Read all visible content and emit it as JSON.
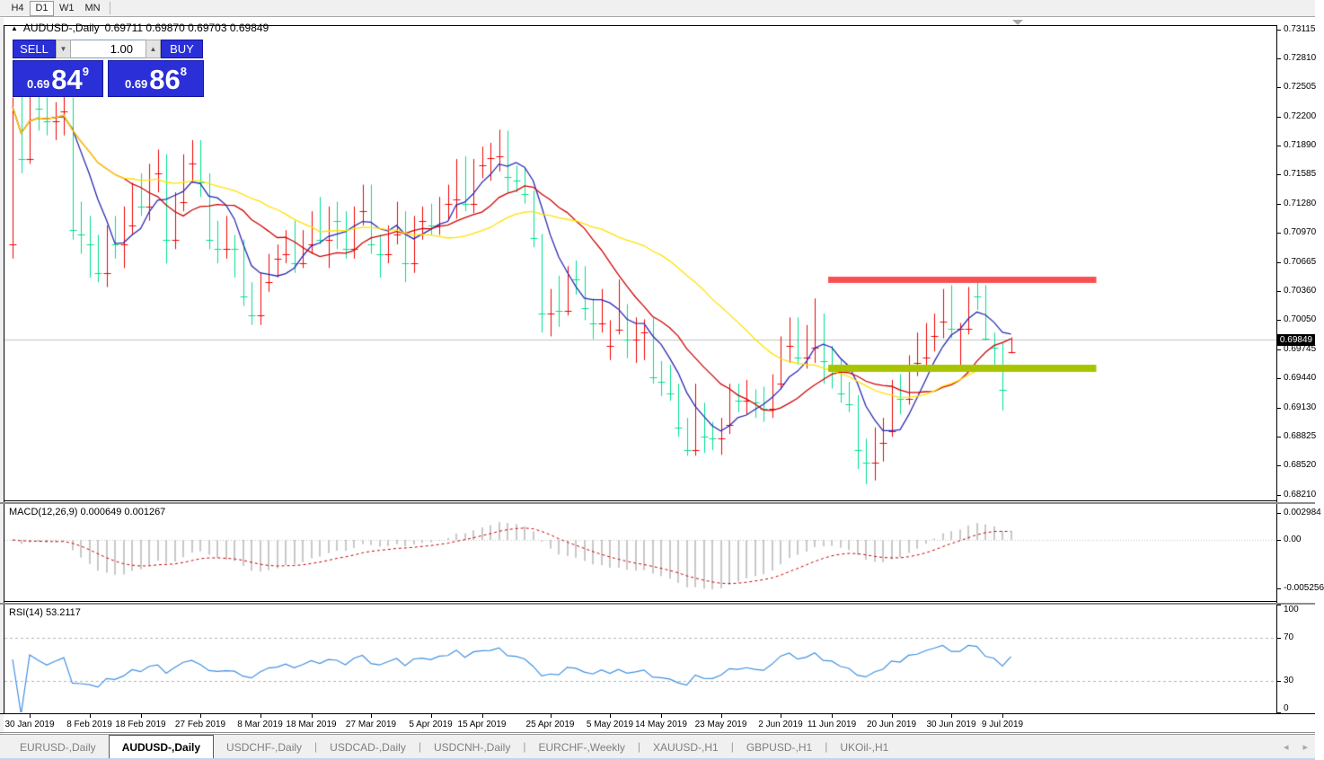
{
  "toolbar": {
    "timeframes": [
      {
        "label": "H4",
        "active": false
      },
      {
        "label": "D1",
        "active": true
      },
      {
        "label": "W1",
        "active": false
      },
      {
        "label": "MN",
        "active": false
      }
    ]
  },
  "chart": {
    "title_symbol": "AUDUSD-,Daily",
    "title_ohlc": "0.69711 0.69870 0.69703 0.69849",
    "trade_panel": {
      "sell_label": "SELL",
      "buy_label": "BUY",
      "volume": "1.00",
      "sell_price": {
        "small": "0.69",
        "big": "84",
        "sup": "9"
      },
      "buy_price": {
        "small": "0.69",
        "big": "86",
        "sup": "8"
      }
    },
    "current_price": "0.69849",
    "price_axis_labels": [
      "0.73115",
      "0.72810",
      "0.72505",
      "0.72200",
      "0.71890",
      "0.71585",
      "0.71280",
      "0.70970",
      "0.70665",
      "0.70360",
      "0.70050",
      "0.69745",
      "0.69440",
      "0.69130",
      "0.68825",
      "0.68520",
      "0.68210"
    ],
    "date_labels": [
      {
        "text": "30 Jan 2019",
        "index": 2
      },
      {
        "text": "8 Feb 2019",
        "index": 9
      },
      {
        "text": "18 Feb 2019",
        "index": 15
      },
      {
        "text": "27 Feb 2019",
        "index": 22
      },
      {
        "text": "8 Mar 2019",
        "index": 29
      },
      {
        "text": "18 Mar 2019",
        "index": 35
      },
      {
        "text": "27 Mar 2019",
        "index": 42
      },
      {
        "text": "5 Apr 2019",
        "index": 49
      },
      {
        "text": "15 Apr 2019",
        "index": 55
      },
      {
        "text": "25 Apr 2019",
        "index": 63
      },
      {
        "text": "5 May 2019",
        "index": 70
      },
      {
        "text": "14 May 2019",
        "index": 76
      },
      {
        "text": "23 May 2019",
        "index": 83
      },
      {
        "text": "2 Jun 2019",
        "index": 90
      },
      {
        "text": "11 Jun 2019",
        "index": 96
      },
      {
        "text": "20 Jun 2019",
        "index": 103
      },
      {
        "text": "30 Jun 2019",
        "index": 110
      },
      {
        "text": "9 Jul 2019",
        "index": 116
      }
    ]
  },
  "chart_data": {
    "type": "candlestick",
    "symbol": "AUDUSD",
    "timeframe": "Daily",
    "price_range": {
      "top": 0.73115,
      "bottom": 0.6821
    },
    "colors": {
      "bull": "#F00000",
      "bear": "#00DF8C",
      "ma_fast": "#2828B4",
      "ma_mid": "#D00000",
      "ma_slow": "#FFE100",
      "resistance": "#F85050",
      "support": "#A8C400",
      "macd_hist": "#C8C8C8",
      "macd_signal": "#C80000",
      "rsi_line": "#4090E0",
      "level_dash": "#B4B4B4",
      "price_line": "#C0C0C0",
      "panel_blue": "#2A2FD8"
    },
    "moving_averages": [
      {
        "period": 6,
        "color_key": "ma_fast"
      },
      {
        "period": 14,
        "color_key": "ma_mid"
      },
      {
        "period": 30,
        "color_key": "ma_slow"
      }
    ],
    "objects": [
      {
        "name": "resistance-line",
        "price": 0.7048,
        "from_index": 96,
        "to_index": 127,
        "color_key": "resistance",
        "thickness": 7
      },
      {
        "name": "support-line",
        "price": 0.69543,
        "from_index": 96,
        "to_index": 127,
        "color_key": "support",
        "thickness": 8
      }
    ],
    "current_price": 0.69849,
    "candles": [
      [
        0.7085,
        0.724,
        0.707,
        0.723
      ],
      [
        0.723,
        0.7245,
        0.716,
        0.7175
      ],
      [
        0.7175,
        0.7245,
        0.717,
        0.724
      ],
      [
        0.724,
        0.725,
        0.7205,
        0.7228
      ],
      [
        0.7228,
        0.724,
        0.72,
        0.7215
      ],
      [
        0.7215,
        0.7235,
        0.7195,
        0.7225
      ],
      [
        0.7225,
        0.7245,
        0.72,
        0.7235
      ],
      [
        0.7235,
        0.724,
        0.709,
        0.71
      ],
      [
        0.71,
        0.713,
        0.7075,
        0.7095
      ],
      [
        0.7095,
        0.7115,
        0.705,
        0.7085
      ],
      [
        0.7085,
        0.7095,
        0.7045,
        0.7055
      ],
      [
        0.7055,
        0.7105,
        0.704,
        0.7095
      ],
      [
        0.7095,
        0.7115,
        0.707,
        0.7085
      ],
      [
        0.7085,
        0.7125,
        0.706,
        0.7105
      ],
      [
        0.7105,
        0.715,
        0.7095,
        0.7145
      ],
      [
        0.7145,
        0.716,
        0.7115,
        0.7125
      ],
      [
        0.7125,
        0.717,
        0.711,
        0.716
      ],
      [
        0.716,
        0.7185,
        0.714,
        0.717
      ],
      [
        0.717,
        0.718,
        0.7065,
        0.709
      ],
      [
        0.709,
        0.714,
        0.708,
        0.713
      ],
      [
        0.713,
        0.718,
        0.712,
        0.717
      ],
      [
        0.717,
        0.7195,
        0.715,
        0.7185
      ],
      [
        0.7185,
        0.7195,
        0.7135,
        0.715
      ],
      [
        0.715,
        0.716,
        0.708,
        0.709
      ],
      [
        0.709,
        0.711,
        0.7065,
        0.708
      ],
      [
        0.708,
        0.7115,
        0.707,
        0.7085
      ],
      [
        0.7085,
        0.7095,
        0.705,
        0.708
      ],
      [
        0.708,
        0.709,
        0.702,
        0.703
      ],
      [
        0.703,
        0.7045,
        0.7,
        0.701
      ],
      [
        0.701,
        0.7055,
        0.7,
        0.7045
      ],
      [
        0.7045,
        0.7075,
        0.7035,
        0.707
      ],
      [
        0.707,
        0.7085,
        0.705,
        0.7075
      ],
      [
        0.7075,
        0.71,
        0.7065,
        0.7095
      ],
      [
        0.7095,
        0.711,
        0.7055,
        0.7065
      ],
      [
        0.7065,
        0.71,
        0.706,
        0.7085
      ],
      [
        0.7085,
        0.712,
        0.7075,
        0.711
      ],
      [
        0.711,
        0.7135,
        0.7085,
        0.709
      ],
      [
        0.709,
        0.7125,
        0.706,
        0.7115
      ],
      [
        0.7115,
        0.713,
        0.708,
        0.711
      ],
      [
        0.711,
        0.712,
        0.707,
        0.708
      ],
      [
        0.708,
        0.7125,
        0.707,
        0.712
      ],
      [
        0.712,
        0.7148,
        0.7105,
        0.714
      ],
      [
        0.714,
        0.7148,
        0.7075,
        0.7085
      ],
      [
        0.7085,
        0.7095,
        0.705,
        0.7075
      ],
      [
        0.7075,
        0.7105,
        0.7065,
        0.7095
      ],
      [
        0.7095,
        0.713,
        0.7085,
        0.7115
      ],
      [
        0.7115,
        0.712,
        0.7045,
        0.7065
      ],
      [
        0.7065,
        0.7115,
        0.7055,
        0.711
      ],
      [
        0.711,
        0.7125,
        0.709,
        0.7115
      ],
      [
        0.7115,
        0.7128,
        0.7095,
        0.7105
      ],
      [
        0.7105,
        0.7135,
        0.7095,
        0.7128
      ],
      [
        0.7128,
        0.7148,
        0.711,
        0.7132
      ],
      [
        0.7132,
        0.7175,
        0.7112,
        0.717
      ],
      [
        0.717,
        0.7178,
        0.712,
        0.7128
      ],
      [
        0.7128,
        0.7175,
        0.7118,
        0.7168
      ],
      [
        0.7168,
        0.7188,
        0.7155,
        0.7176
      ],
      [
        0.7176,
        0.7192,
        0.7152,
        0.7178
      ],
      [
        0.7178,
        0.7206,
        0.7162,
        0.7198
      ],
      [
        0.7198,
        0.7205,
        0.714,
        0.7156
      ],
      [
        0.7156,
        0.7168,
        0.714,
        0.7152
      ],
      [
        0.7152,
        0.7165,
        0.7128,
        0.7138
      ],
      [
        0.7138,
        0.7142,
        0.7082,
        0.7092
      ],
      [
        0.7092,
        0.7096,
        0.6992,
        0.7012
      ],
      [
        0.7012,
        0.7038,
        0.6988,
        0.7022
      ],
      [
        0.7022,
        0.7052,
        0.6998,
        0.7015
      ],
      [
        0.7015,
        0.7062,
        0.701,
        0.7055
      ],
      [
        0.7055,
        0.7068,
        0.7032,
        0.7048
      ],
      [
        0.7048,
        0.7062,
        0.7005,
        0.7018
      ],
      [
        0.7018,
        0.7028,
        0.6985,
        0.7002
      ],
      [
        0.7002,
        0.7038,
        0.6992,
        0.7022
      ],
      [
        0.6978,
        0.7005,
        0.6963,
        0.6995
      ],
      [
        0.6995,
        0.7048,
        0.699,
        0.7015
      ],
      [
        0.7015,
        0.7022,
        0.6965,
        0.6985
      ],
      [
        0.6985,
        0.7008,
        0.696,
        0.6992
      ],
      [
        0.6992,
        0.7006,
        0.6963,
        0.7
      ],
      [
        0.7,
        0.7008,
        0.6938,
        0.6945
      ],
      [
        0.6945,
        0.6962,
        0.6925,
        0.694
      ],
      [
        0.694,
        0.6958,
        0.692,
        0.6928
      ],
      [
        0.6928,
        0.6938,
        0.6882,
        0.6892
      ],
      [
        0.6892,
        0.6902,
        0.6862,
        0.6868
      ],
      [
        0.6868,
        0.6938,
        0.6862,
        0.6912
      ],
      [
        0.6912,
        0.6918,
        0.6865,
        0.6882
      ],
      [
        0.6882,
        0.6898,
        0.6868,
        0.688
      ],
      [
        0.688,
        0.6902,
        0.6863,
        0.6895
      ],
      [
        0.6895,
        0.6938,
        0.6885,
        0.6925
      ],
      [
        0.6925,
        0.6938,
        0.6908,
        0.692
      ],
      [
        0.692,
        0.6942,
        0.6905,
        0.6928
      ],
      [
        0.6928,
        0.6932,
        0.6902,
        0.6918
      ],
      [
        0.6918,
        0.6935,
        0.6898,
        0.6912
      ],
      [
        0.6912,
        0.6948,
        0.6902,
        0.6938
      ],
      [
        0.6938,
        0.6988,
        0.6932,
        0.6978
      ],
      [
        0.6978,
        0.7008,
        0.696,
        0.6996
      ],
      [
        0.6996,
        0.7008,
        0.6958,
        0.6966
      ],
      [
        0.6966,
        0.7,
        0.6954,
        0.6976
      ],
      [
        0.6976,
        0.7028,
        0.696,
        0.7
      ],
      [
        0.7,
        0.7012,
        0.6938,
        0.6962
      ],
      [
        0.6962,
        0.6978,
        0.6933,
        0.6958
      ],
      [
        0.6958,
        0.6965,
        0.6918,
        0.6928
      ],
      [
        0.6928,
        0.694,
        0.6908,
        0.6916
      ],
      [
        0.6916,
        0.6926,
        0.6848,
        0.6868
      ],
      [
        0.6868,
        0.688,
        0.6832,
        0.6855
      ],
      [
        0.6855,
        0.6892,
        0.6836,
        0.6876
      ],
      [
        0.6876,
        0.6902,
        0.6856,
        0.6888
      ],
      [
        0.6888,
        0.6942,
        0.6882,
        0.6928
      ],
      [
        0.6928,
        0.6948,
        0.6906,
        0.6922
      ],
      [
        0.6922,
        0.6968,
        0.6916,
        0.696
      ],
      [
        0.696,
        0.6992,
        0.6946,
        0.6966
      ],
      [
        0.6966,
        0.7002,
        0.6956,
        0.6988
      ],
      [
        0.6988,
        0.7012,
        0.6972,
        0.7004
      ],
      [
        0.7004,
        0.7038,
        0.6986,
        0.7022
      ],
      [
        0.7022,
        0.7042,
        0.6986,
        0.6996
      ],
      [
        0.6996,
        0.7002,
        0.6952,
        0.6996
      ],
      [
        0.6996,
        0.704,
        0.699,
        0.7034
      ],
      [
        0.7034,
        0.7048,
        0.7016,
        0.703
      ],
      [
        0.703,
        0.7042,
        0.6984,
        0.6986
      ],
      [
        0.6986,
        0.6992,
        0.6952,
        0.6976
      ],
      [
        0.6976,
        0.6982,
        0.691,
        0.6932
      ],
      [
        0.6971,
        0.6987,
        0.697,
        0.6985
      ]
    ],
    "macd": {
      "label": "MACD(12,26,9)",
      "values_text": "0.000649 0.001267",
      "params": [
        12,
        26,
        9
      ],
      "scale_max": 0.00358,
      "scale_min": -0.00598,
      "axis_labels": [
        "0.002984",
        "0.00",
        "-0.005256"
      ],
      "axis_values": [
        0.002984,
        0.0,
        -0.005256
      ]
    },
    "rsi": {
      "label": "RSI(14)",
      "value_text": "53.2117",
      "period": 14,
      "levels": [
        70,
        30
      ],
      "axis_labels": [
        "100",
        "70",
        "30",
        "0"
      ],
      "axis_values": [
        100,
        70,
        30,
        0
      ]
    }
  },
  "bottom_tabs": {
    "tabs": [
      {
        "label": "EURUSD-,Daily",
        "active": false
      },
      {
        "label": "AUDUSD-,Daily",
        "active": true
      },
      {
        "label": "USDCHF-,Daily",
        "active": false
      },
      {
        "label": "USDCAD-,Daily",
        "active": false
      },
      {
        "label": "USDCNH-,Daily",
        "active": false
      },
      {
        "label": "EURCHF-,Weekly",
        "active": false
      },
      {
        "label": "XAUUSD-,H1",
        "active": false
      },
      {
        "label": "GBPUSD-,H1",
        "active": false
      },
      {
        "label": "UKOil-,H1",
        "active": false
      }
    ],
    "scroll_left": "◂",
    "scroll_right": "▸"
  }
}
